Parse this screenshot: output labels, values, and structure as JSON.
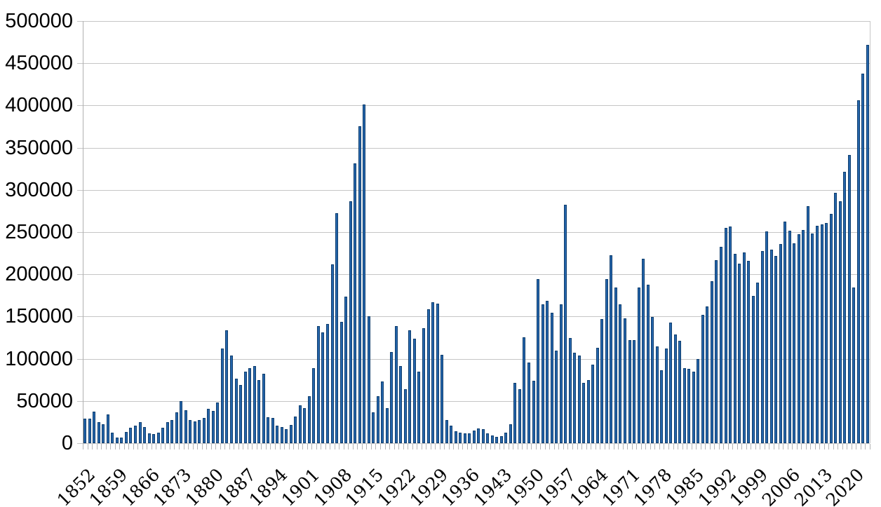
{
  "chart_data": {
    "type": "bar",
    "title": "",
    "xlabel": "",
    "ylabel": "",
    "ylim": [
      0,
      500000
    ],
    "grid": "horizontal",
    "legend": "none",
    "yticks": [
      0,
      50000,
      100000,
      150000,
      200000,
      250000,
      300000,
      350000,
      400000,
      450000,
      500000
    ],
    "xtick_labels": [
      "1852",
      "1859",
      "1866",
      "1873",
      "1880",
      "1887",
      "1894",
      "1901",
      "1908",
      "1915",
      "1922",
      "1929",
      "1936",
      "1943",
      "1950",
      "1957",
      "1964",
      "1971",
      "1978",
      "1985",
      "1992",
      "1999",
      "2006",
      "2013",
      "2020"
    ],
    "xtick_interval": 7,
    "x": [
      1852,
      1853,
      1854,
      1855,
      1856,
      1857,
      1858,
      1859,
      1860,
      1861,
      1862,
      1863,
      1864,
      1865,
      1866,
      1867,
      1868,
      1869,
      1870,
      1871,
      1872,
      1873,
      1874,
      1875,
      1876,
      1877,
      1878,
      1879,
      1880,
      1881,
      1882,
      1883,
      1884,
      1885,
      1886,
      1887,
      1888,
      1889,
      1890,
      1891,
      1892,
      1893,
      1894,
      1895,
      1896,
      1897,
      1898,
      1899,
      1900,
      1901,
      1902,
      1903,
      1904,
      1905,
      1906,
      1907,
      1908,
      1909,
      1910,
      1911,
      1912,
      1913,
      1914,
      1915,
      1916,
      1917,
      1918,
      1919,
      1920,
      1921,
      1922,
      1923,
      1924,
      1925,
      1926,
      1927,
      1928,
      1929,
      1930,
      1931,
      1932,
      1933,
      1934,
      1935,
      1936,
      1937,
      1938,
      1939,
      1940,
      1941,
      1942,
      1943,
      1944,
      1945,
      1946,
      1947,
      1948,
      1949,
      1950,
      1951,
      1952,
      1953,
      1954,
      1955,
      1956,
      1957,
      1958,
      1959,
      1960,
      1961,
      1962,
      1963,
      1964,
      1965,
      1966,
      1967,
      1968,
      1969,
      1970,
      1971,
      1972,
      1973,
      1974,
      1975,
      1976,
      1977,
      1978,
      1979,
      1980,
      1981,
      1982,
      1983,
      1984,
      1985,
      1986,
      1987,
      1988,
      1989,
      1990,
      1991,
      1992,
      1993,
      1994,
      1995,
      1996,
      1997,
      1998,
      1999,
      2000,
      2001,
      2002,
      2003,
      2004,
      2005,
      2006,
      2007,
      2008,
      2009,
      2010,
      2011,
      2012,
      2013,
      2014,
      2015,
      2016,
      2017,
      2018,
      2019,
      2020,
      2021,
      2022,
      2023
    ],
    "values": [
      29307,
      29464,
      37263,
      25296,
      22439,
      33854,
      12339,
      6300,
      6276,
      13589,
      18294,
      21000,
      24779,
      18958,
      11427,
      10666,
      12765,
      18630,
      24706,
      27773,
      36578,
      50050,
      39373,
      27382,
      25633,
      27082,
      29807,
      40492,
      38505,
      47991,
      112458,
      133624,
      103824,
      76169,
      69152,
      84526,
      88766,
      91600,
      75067,
      82165,
      30996,
      29633,
      20829,
      18790,
      16835,
      21716,
      31900,
      44543,
      41681,
      55747,
      89102,
      138660,
      131252,
      141465,
      211653,
      272409,
      143326,
      173694,
      286839,
      331288,
      375756,
      400870,
      150484,
      36665,
      55914,
      72910,
      41845,
      107698,
      138824,
      91728,
      64224,
      133729,
      124164,
      84907,
      135982,
      158886,
      166783,
      164993,
      104806,
      27530,
      20591,
      14382,
      12476,
      11277,
      11643,
      15101,
      17244,
      16994,
      11324,
      9329,
      7576,
      8504,
      12801,
      22722,
      71719,
      64127,
      125414,
      95217,
      73912,
      194391,
      164498,
      168868,
      154227,
      109946,
      164857,
      282164,
      124851,
      106928,
      104111,
      71698,
      74856,
      93151,
      112606,
      146758,
      194743,
      222876,
      183974,
      164531,
      147713,
      121900,
      122006,
      184200,
      218465,
      187881,
      149429,
      114914,
      86313,
      112093,
      143140,
      128643,
      121153,
      89188,
      88271,
      84334,
      99325,
      151999,
      161584,
      191499,
      216452,
      232744,
      254817,
      256741,
      224364,
      212869,
      226071,
      216035,
      174195,
      189951,
      227455,
      250638,
      229048,
      221349,
      235823,
      262242,
      251640,
      236753,
      247246,
      252172,
      280687,
      248748,
      257887,
      258953,
      260404,
      271845,
      296346,
      286479,
      321035,
      341180,
      184606,
      405999,
      437539,
      471808
    ],
    "colors": {
      "bar_fill": "#2565ab",
      "bar_border": "#0f3e6e",
      "gridline": "#c6c6c6",
      "axis_line": "#b0b0b0",
      "tick": "#b4b4b4",
      "label_text": "#000000",
      "background": "#ffffff"
    },
    "layout": {
      "plot_left": 118,
      "plot_top": 30,
      "plot_right": 1240,
      "plot_bottom": 632,
      "grid_overhang_left": 8,
      "tick_length": 8
    }
  }
}
